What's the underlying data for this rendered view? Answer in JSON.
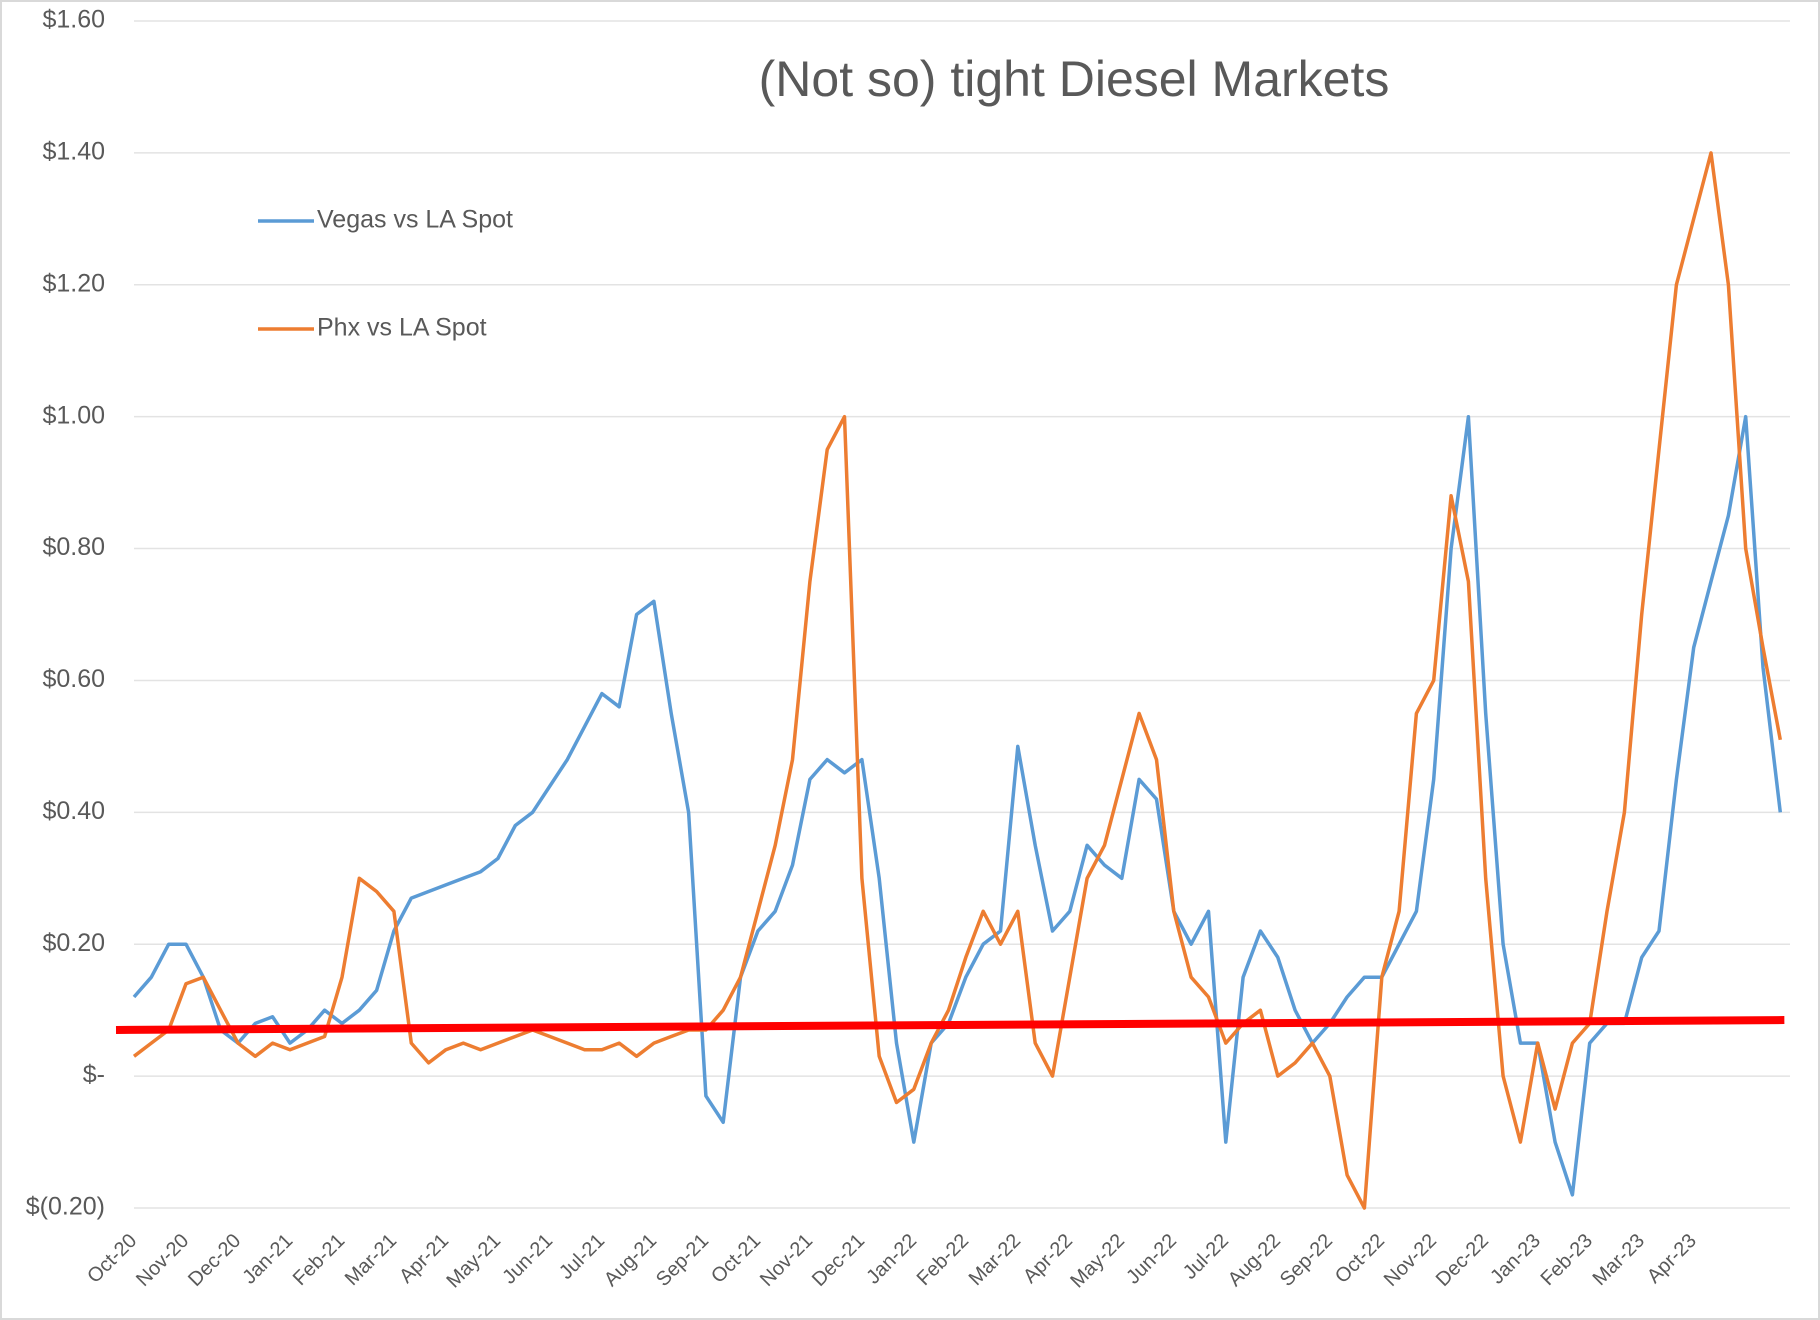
{
  "chart_data": {
    "type": "line",
    "title": "(Not so) tight Diesel Markets",
    "categories": [
      "Oct-20",
      null,
      null,
      "Nov-20",
      null,
      null,
      "Dec-20",
      null,
      null,
      "Jan-21",
      null,
      null,
      "Feb-21",
      null,
      null,
      "Mar-21",
      null,
      null,
      "Apr-21",
      null,
      null,
      "May-21",
      null,
      null,
      "Jun-21",
      null,
      null,
      "Jul-21",
      null,
      null,
      "Aug-21",
      null,
      null,
      "Sep-21",
      null,
      null,
      "Oct-21",
      null,
      null,
      "Nov-21",
      null,
      null,
      "Dec-21",
      null,
      null,
      "Jan-22",
      null,
      null,
      "Feb-22",
      null,
      null,
      "Mar-22",
      null,
      null,
      "Apr-22",
      null,
      null,
      "May-22",
      null,
      null,
      "Jun-22",
      null,
      null,
      "Jul-22",
      null,
      null,
      "Aug-22",
      null,
      null,
      "Sep-22",
      null,
      null,
      "Oct-22",
      null,
      null,
      "Nov-22",
      null,
      null,
      "Dec-22",
      null,
      null,
      "Jan-23",
      null,
      null,
      "Feb-23",
      null,
      null,
      "Mar-23",
      null,
      null,
      "Apr-23",
      null,
      null,
      null,
      null,
      null
    ],
    "series": [
      {
        "name": "Vegas vs LA Spot",
        "color": "#5b9bd5",
        "values": [
          0.12,
          0.15,
          0.2,
          0.2,
          0.15,
          0.07,
          0.05,
          0.08,
          0.09,
          0.05,
          0.07,
          0.1,
          0.08,
          0.1,
          0.13,
          0.22,
          0.27,
          0.28,
          0.29,
          0.3,
          0.31,
          0.33,
          0.38,
          0.4,
          0.44,
          0.48,
          0.53,
          0.58,
          0.56,
          0.7,
          0.72,
          0.55,
          0.4,
          -0.03,
          -0.07,
          0.15,
          0.22,
          0.25,
          0.32,
          0.45,
          0.48,
          0.46,
          0.48,
          0.3,
          0.05,
          -0.1,
          0.05,
          0.08,
          0.15,
          0.2,
          0.22,
          0.5,
          0.35,
          0.22,
          0.25,
          0.35,
          0.32,
          0.3,
          0.45,
          0.42,
          0.25,
          0.2,
          0.25,
          -0.1,
          0.15,
          0.22,
          0.18,
          0.1,
          0.05,
          0.08,
          0.12,
          0.15,
          0.15,
          0.2,
          0.25,
          0.45,
          0.8,
          1.0,
          0.55,
          0.2,
          0.05,
          0.05,
          -0.1,
          -0.18,
          0.05,
          0.08,
          0.08,
          0.18,
          0.22,
          0.45,
          0.65,
          0.75,
          0.85,
          1.0,
          0.62,
          0.4
        ]
      },
      {
        "name": "Phx vs LA Spot",
        "color": "#ed7d31",
        "values": [
          0.03,
          0.05,
          0.07,
          0.14,
          0.15,
          0.1,
          0.05,
          0.03,
          0.05,
          0.04,
          0.05,
          0.06,
          0.15,
          0.3,
          0.28,
          0.25,
          0.05,
          0.02,
          0.04,
          0.05,
          0.04,
          0.05,
          0.06,
          0.07,
          0.06,
          0.05,
          0.04,
          0.04,
          0.05,
          0.03,
          0.05,
          0.06,
          0.07,
          0.07,
          0.1,
          0.15,
          0.25,
          0.35,
          0.48,
          0.75,
          0.95,
          1.0,
          0.3,
          0.03,
          -0.04,
          -0.02,
          0.05,
          0.1,
          0.18,
          0.25,
          0.2,
          0.25,
          0.05,
          0.0,
          0.15,
          0.3,
          0.35,
          0.45,
          0.55,
          0.48,
          0.25,
          0.15,
          0.12,
          0.05,
          0.08,
          0.1,
          0.0,
          0.02,
          0.05,
          0.0,
          -0.15,
          -0.2,
          0.15,
          0.25,
          0.55,
          0.6,
          0.88,
          0.75,
          0.3,
          0.0,
          -0.1,
          0.05,
          -0.05,
          0.05,
          0.08,
          0.25,
          0.4,
          0.7,
          0.95,
          1.2,
          1.3,
          1.4,
          1.2,
          0.8,
          0.65,
          0.51
        ]
      }
    ],
    "reference_line": {
      "color": "#ff0000",
      "start": 0.07,
      "end": 0.085
    },
    "ylim": [
      -0.2,
      1.6
    ],
    "yticks": [
      {
        "value": -0.2,
        "label": "$(0.20)"
      },
      {
        "value": 0,
        "label": "$-"
      },
      {
        "value": 0.2,
        "label": "$0.20"
      },
      {
        "value": 0.4,
        "label": "$0.40"
      },
      {
        "value": 0.6,
        "label": "$0.60"
      },
      {
        "value": 0.8,
        "label": "$0.80"
      },
      {
        "value": 1.0,
        "label": "$1.00"
      },
      {
        "value": 1.2,
        "label": "$1.20"
      },
      {
        "value": 1.4,
        "label": "$1.40"
      },
      {
        "value": 1.6,
        "label": "$1.60"
      }
    ],
    "grid": true,
    "legend": "upper left"
  }
}
